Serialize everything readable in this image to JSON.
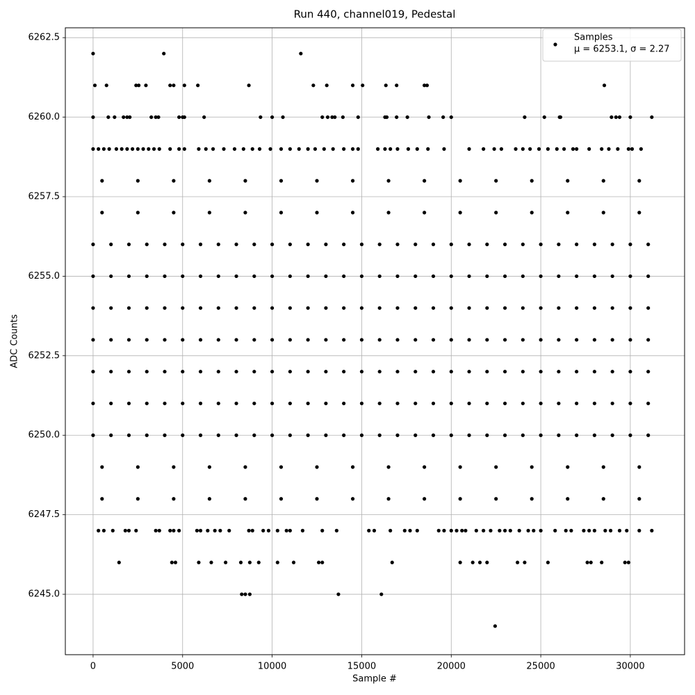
{
  "chart_data": {
    "type": "scatter",
    "title": "Run 440, channel019, Pedestal",
    "x_label": "Sample #",
    "y_label": "ADC Counts",
    "grid": true,
    "legend_position": "upper right",
    "xlim": [
      -1550,
      33030
    ],
    "ylim": [
      6243.1,
      6262.81
    ],
    "xticks": [
      0,
      5000,
      10000,
      15000,
      20000,
      25000,
      30000
    ],
    "yticks": [
      {
        "value": 6245,
        "label": "6245.0"
      },
      {
        "value": 6247.5,
        "label": "6247.5"
      },
      {
        "value": 6250,
        "label": "6250.0"
      },
      {
        "value": 6252.5,
        "label": "6252.5"
      },
      {
        "value": 6255,
        "label": "6255.0"
      },
      {
        "value": 6257.5,
        "label": "6257.5"
      },
      {
        "value": 6260,
        "label": "6260.0"
      },
      {
        "value": 6262.5,
        "label": "6262.5"
      }
    ],
    "series": [
      {
        "name": "Samples",
        "stats_label": "μ = 6253.1, σ = 2.27",
        "color": "#000000",
        "x": [
          0,
          3950,
          11600,
          100,
          750,
          2400,
          2550,
          2950,
          4300,
          4500,
          5100,
          5850,
          8700,
          12300,
          13050,
          14500,
          15050,
          16350,
          16950,
          18500,
          18650,
          28550,
          0,
          850,
          1200,
          1700,
          1900,
          2050,
          3250,
          3500,
          3650,
          4800,
          5000,
          5100,
          6200,
          9350,
          10000,
          10600,
          12800,
          13100,
          13350,
          13500,
          13950,
          14800,
          16300,
          16400,
          16950,
          17550,
          18750,
          19550,
          20000,
          24100,
          25200,
          26050,
          26100,
          28950,
          29200,
          29400,
          30000,
          31200,
          0,
          300,
          600,
          900,
          1300,
          1600,
          1900,
          2200,
          2500,
          2800,
          3100,
          3400,
          3700,
          4300,
          4800,
          5100,
          5900,
          6300,
          6700,
          7300,
          7900,
          8400,
          8900,
          9300,
          9900,
          10500,
          11000,
          11500,
          12000,
          12400,
          12900,
          13400,
          14000,
          14500,
          14800,
          15900,
          16300,
          16600,
          17000,
          17600,
          18100,
          18700,
          19600,
          21000,
          21800,
          22400,
          22800,
          23600,
          24000,
          24400,
          24900,
          25400,
          25900,
          26300,
          26800,
          27000,
          27700,
          28400,
          28800,
          29300,
          29900,
          30100,
          30600,
          500,
          2500,
          4500,
          6500,
          8500,
          10500,
          12500,
          14500,
          16500,
          18500,
          20500,
          22500,
          24500,
          26500,
          28500,
          30500,
          500,
          2500,
          4500,
          6500,
          8500,
          10500,
          12500,
          14500,
          16500,
          18500,
          20500,
          22500,
          24500,
          26500,
          28500,
          30500,
          0,
          1000,
          2000,
          3000,
          4000,
          5000,
          6000,
          7000,
          8000,
          9000,
          10000,
          11000,
          12000,
          13000,
          14000,
          15000,
          16000,
          17000,
          18000,
          19000,
          20000,
          21000,
          22000,
          23000,
          24000,
          25000,
          26000,
          27000,
          28000,
          29000,
          30000,
          31000,
          0,
          1000,
          2000,
          3000,
          4000,
          5000,
          6000,
          7000,
          8000,
          9000,
          10000,
          11000,
          12000,
          13000,
          14000,
          15000,
          16000,
          17000,
          18000,
          19000,
          20000,
          21000,
          22000,
          23000,
          24000,
          25000,
          26000,
          27000,
          28000,
          29000,
          30000,
          31000,
          0,
          1000,
          2000,
          3000,
          4000,
          5000,
          6000,
          7000,
          8000,
          9000,
          10000,
          11000,
          12000,
          13000,
          14000,
          15000,
          16000,
          17000,
          18000,
          19000,
          20000,
          21000,
          22000,
          23000,
          24000,
          25000,
          26000,
          27000,
          28000,
          29000,
          30000,
          31000,
          0,
          1000,
          2000,
          3000,
          4000,
          5000,
          6000,
          7000,
          8000,
          9000,
          10000,
          11000,
          12000,
          13000,
          14000,
          15000,
          16000,
          17000,
          18000,
          19000,
          20000,
          21000,
          22000,
          23000,
          24000,
          25000,
          26000,
          27000,
          28000,
          29000,
          30000,
          31000,
          0,
          1000,
          2000,
          3000,
          4000,
          5000,
          6000,
          7000,
          8000,
          9000,
          10000,
          11000,
          12000,
          13000,
          14000,
          15000,
          16000,
          17000,
          18000,
          19000,
          20000,
          21000,
          22000,
          23000,
          24000,
          25000,
          26000,
          27000,
          28000,
          29000,
          30000,
          31000,
          0,
          1000,
          2000,
          3000,
          4000,
          5000,
          6000,
          7000,
          8000,
          9000,
          10000,
          11000,
          12000,
          13000,
          14000,
          15000,
          16000,
          17000,
          18000,
          19000,
          20000,
          21000,
          22000,
          23000,
          24000,
          25000,
          26000,
          27000,
          28000,
          29000,
          30000,
          31000,
          0,
          1000,
          2000,
          3000,
          4000,
          5000,
          6000,
          7000,
          8000,
          9000,
          10000,
          11000,
          12000,
          13000,
          14000,
          15000,
          16000,
          17000,
          18000,
          19000,
          20000,
          21000,
          22000,
          23000,
          24000,
          25000,
          26000,
          27000,
          28000,
          29000,
          30000,
          31000,
          500,
          2500,
          4500,
          6500,
          8500,
          10500,
          12500,
          14500,
          16500,
          18500,
          20500,
          22500,
          24500,
          26500,
          28500,
          30500,
          500,
          2500,
          4500,
          6500,
          8500,
          10500,
          12500,
          14500,
          16500,
          18500,
          20500,
          22500,
          24500,
          26500,
          28500,
          30500,
          300,
          600,
          1100,
          1800,
          2000,
          2400,
          3500,
          3700,
          4300,
          4500,
          4800,
          5800,
          6000,
          6400,
          6800,
          7100,
          7600,
          8700,
          8900,
          9500,
          9800,
          10300,
          10800,
          11000,
          11700,
          12800,
          13600,
          15400,
          15700,
          16600,
          17400,
          17700,
          18100,
          19300,
          19600,
          20000,
          20300,
          20600,
          20800,
          21400,
          21800,
          22200,
          22700,
          23000,
          23300,
          23800,
          24300,
          24600,
          25000,
          25800,
          26400,
          26700,
          27400,
          27700,
          28000,
          28600,
          28900,
          29400,
          29800,
          30500,
          31200,
          1450,
          4400,
          4600,
          5900,
          6600,
          7400,
          8250,
          8750,
          9250,
          10300,
          11200,
          12600,
          12800,
          16700,
          20500,
          21200,
          21600,
          22000,
          23700,
          24100,
          25400,
          27600,
          27800,
          28400,
          29700,
          29900,
          8300,
          8500,
          8750,
          13700,
          16100,
          22450
        ],
        "values": [
          6262,
          6262,
          6262,
          6261,
          6261,
          6261,
          6261,
          6261,
          6261,
          6261,
          6261,
          6261,
          6261,
          6261,
          6261,
          6261,
          6261,
          6261,
          6261,
          6261,
          6261,
          6261,
          6260,
          6260,
          6260,
          6260,
          6260,
          6260,
          6260,
          6260,
          6260,
          6260,
          6260,
          6260,
          6260,
          6260,
          6260,
          6260,
          6260,
          6260,
          6260,
          6260,
          6260,
          6260,
          6260,
          6260,
          6260,
          6260,
          6260,
          6260,
          6260,
          6260,
          6260,
          6260,
          6260,
          6260,
          6260,
          6260,
          6260,
          6260,
          6259,
          6259,
          6259,
          6259,
          6259,
          6259,
          6259,
          6259,
          6259,
          6259,
          6259,
          6259,
          6259,
          6259,
          6259,
          6259,
          6259,
          6259,
          6259,
          6259,
          6259,
          6259,
          6259,
          6259,
          6259,
          6259,
          6259,
          6259,
          6259,
          6259,
          6259,
          6259,
          6259,
          6259,
          6259,
          6259,
          6259,
          6259,
          6259,
          6259,
          6259,
          6259,
          6259,
          6259,
          6259,
          6259,
          6259,
          6259,
          6259,
          6259,
          6259,
          6259,
          6259,
          6259,
          6259,
          6259,
          6259,
          6259,
          6259,
          6259,
          6259,
          6259,
          6259,
          6258,
          6258,
          6258,
          6258,
          6258,
          6258,
          6258,
          6258,
          6258,
          6258,
          6258,
          6258,
          6258,
          6258,
          6258,
          6258,
          6257,
          6257,
          6257,
          6257,
          6257,
          6257,
          6257,
          6257,
          6257,
          6257,
          6257,
          6257,
          6257,
          6257,
          6257,
          6257,
          6256,
          6256,
          6256,
          6256,
          6256,
          6256,
          6256,
          6256,
          6256,
          6256,
          6256,
          6256,
          6256,
          6256,
          6256,
          6256,
          6256,
          6256,
          6256,
          6256,
          6256,
          6256,
          6256,
          6256,
          6256,
          6256,
          6256,
          6256,
          6256,
          6256,
          6256,
          6256,
          6255,
          6255,
          6255,
          6255,
          6255,
          6255,
          6255,
          6255,
          6255,
          6255,
          6255,
          6255,
          6255,
          6255,
          6255,
          6255,
          6255,
          6255,
          6255,
          6255,
          6255,
          6255,
          6255,
          6255,
          6255,
          6255,
          6255,
          6255,
          6255,
          6255,
          6255,
          6255,
          6254,
          6254,
          6254,
          6254,
          6254,
          6254,
          6254,
          6254,
          6254,
          6254,
          6254,
          6254,
          6254,
          6254,
          6254,
          6254,
          6254,
          6254,
          6254,
          6254,
          6254,
          6254,
          6254,
          6254,
          6254,
          6254,
          6254,
          6254,
          6254,
          6254,
          6254,
          6254,
          6253,
          6253,
          6253,
          6253,
          6253,
          6253,
          6253,
          6253,
          6253,
          6253,
          6253,
          6253,
          6253,
          6253,
          6253,
          6253,
          6253,
          6253,
          6253,
          6253,
          6253,
          6253,
          6253,
          6253,
          6253,
          6253,
          6253,
          6253,
          6253,
          6253,
          6253,
          6253,
          6252,
          6252,
          6252,
          6252,
          6252,
          6252,
          6252,
          6252,
          6252,
          6252,
          6252,
          6252,
          6252,
          6252,
          6252,
          6252,
          6252,
          6252,
          6252,
          6252,
          6252,
          6252,
          6252,
          6252,
          6252,
          6252,
          6252,
          6252,
          6252,
          6252,
          6252,
          6252,
          6251,
          6251,
          6251,
          6251,
          6251,
          6251,
          6251,
          6251,
          6251,
          6251,
          6251,
          6251,
          6251,
          6251,
          6251,
          6251,
          6251,
          6251,
          6251,
          6251,
          6251,
          6251,
          6251,
          6251,
          6251,
          6251,
          6251,
          6251,
          6251,
          6251,
          6251,
          6251,
          6250,
          6250,
          6250,
          6250,
          6250,
          6250,
          6250,
          6250,
          6250,
          6250,
          6250,
          6250,
          6250,
          6250,
          6250,
          6250,
          6250,
          6250,
          6250,
          6250,
          6250,
          6250,
          6250,
          6250,
          6250,
          6250,
          6250,
          6250,
          6250,
          6250,
          6250,
          6250,
          6249,
          6249,
          6249,
          6249,
          6249,
          6249,
          6249,
          6249,
          6249,
          6249,
          6249,
          6249,
          6249,
          6249,
          6249,
          6249,
          6248,
          6248,
          6248,
          6248,
          6248,
          6248,
          6248,
          6248,
          6248,
          6248,
          6248,
          6248,
          6248,
          6248,
          6248,
          6248,
          6247,
          6247,
          6247,
          6247,
          6247,
          6247,
          6247,
          6247,
          6247,
          6247,
          6247,
          6247,
          6247,
          6247,
          6247,
          6247,
          6247,
          6247,
          6247,
          6247,
          6247,
          6247,
          6247,
          6247,
          6247,
          6247,
          6247,
          6247,
          6247,
          6247,
          6247,
          6247,
          6247,
          6247,
          6247,
          6247,
          6247,
          6247,
          6247,
          6247,
          6247,
          6247,
          6247,
          6247,
          6247,
          6247,
          6247,
          6247,
          6247,
          6247,
          6247,
          6247,
          6247,
          6247,
          6247,
          6247,
          6247,
          6247,
          6247,
          6247,
          6247,
          6246,
          6246,
          6246,
          6246,
          6246,
          6246,
          6246,
          6246,
          6246,
          6246,
          6246,
          6246,
          6246,
          6246,
          6246,
          6246,
          6246,
          6246,
          6246,
          6246,
          6246,
          6246,
          6246,
          6246,
          6246,
          6246,
          6245,
          6245,
          6245,
          6245,
          6245,
          6244
        ]
      }
    ]
  }
}
